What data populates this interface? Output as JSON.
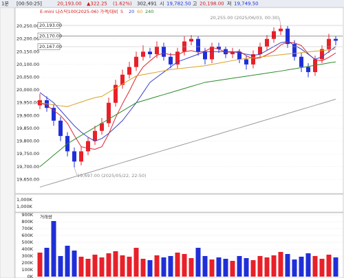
{
  "header": {
    "tab": "1분",
    "time": "[00:50:25]",
    "price": "20,193.00",
    "change": "▲322.25",
    "rate": "(1.62%)",
    "volume": "302,491",
    "open_label": "시",
    "open": "19,782.50",
    "high_label": "고",
    "high": "20,198.00",
    "low_label": "저",
    "low": "19,749.50"
  },
  "sub_labels": [
    "1,000K",
    "1,000K"
  ],
  "chart_data": [
    {
      "type": "candlestick",
      "legend": "E-mini 나스닥100(2025-06) 가격/대비",
      "up_color": "#e8202a",
      "down_color": "#1f2fd8",
      "open": [
        19940,
        19960,
        19930,
        19880,
        19820,
        19760,
        19720,
        19760,
        19800,
        19840,
        19870,
        19950,
        20020,
        20060,
        20090,
        20130,
        20150,
        20140,
        20170,
        20130,
        20100,
        20150,
        20190,
        20200,
        20150,
        20120,
        20170,
        20160,
        20140,
        20150,
        20120,
        20100,
        20140,
        20170,
        20200,
        20230,
        20240,
        20180,
        20130,
        20090,
        20070,
        20120,
        20160,
        20200
      ],
      "high": [
        19985,
        19975,
        19945,
        19895,
        19835,
        19775,
        19780,
        19815,
        19860,
        19890,
        19970,
        20040,
        20080,
        20110,
        20150,
        20175,
        20165,
        20190,
        20185,
        20145,
        20165,
        20210,
        20215,
        20210,
        20165,
        20185,
        20185,
        20170,
        20165,
        20160,
        20135,
        20155,
        20185,
        20215,
        20245,
        20255,
        20250,
        20195,
        20145,
        20105,
        20135,
        20175,
        20220,
        20210
      ],
      "low": [
        19925,
        19915,
        19860,
        19800,
        19740,
        19697,
        19705,
        19745,
        19785,
        19825,
        19855,
        19935,
        20005,
        20045,
        20075,
        20115,
        20125,
        20125,
        20115,
        20085,
        20085,
        20135,
        20175,
        20135,
        20100,
        20105,
        20145,
        20125,
        20125,
        20105,
        20080,
        20085,
        20125,
        20155,
        20185,
        20215,
        20165,
        20115,
        20070,
        20050,
        20055,
        20105,
        20145,
        20175
      ],
      "close": [
        19960,
        19930,
        19880,
        19820,
        19760,
        19720,
        19760,
        19800,
        19840,
        19870,
        19950,
        20020,
        20060,
        20090,
        20130,
        20150,
        20140,
        20170,
        20130,
        20100,
        20150,
        20190,
        20200,
        20150,
        20120,
        20170,
        20160,
        20140,
        20150,
        20120,
        20100,
        20140,
        20170,
        20200,
        20230,
        20240,
        20180,
        20130,
        20090,
        20070,
        20120,
        20160,
        20200,
        20193
      ],
      "ylim": [
        19600,
        20320
      ],
      "yticks": [
        {
          "value": 19650,
          "label": "19,650.00"
        },
        {
          "value": 19700,
          "label": "19,700.00"
        },
        {
          "value": 19750,
          "label": "19,750.00"
        },
        {
          "value": 19800,
          "label": "19,800.00"
        },
        {
          "value": 19850,
          "label": "19,850.00"
        },
        {
          "value": 19900,
          "label": "19,900.00"
        },
        {
          "value": 19950,
          "label": "19,950.00"
        },
        {
          "value": 20000,
          "label": "20,000.00"
        },
        {
          "value": 20050,
          "label": "20,050.00"
        },
        {
          "value": 20100,
          "label": "20,100.00"
        },
        {
          "value": 20150,
          "label": "20,150.00"
        },
        {
          "value": 20200,
          "label": "20,200.00"
        },
        {
          "value": 20250,
          "label": "20,250.00"
        }
      ],
      "price_labels": [
        "20,193.00",
        "20,170.00",
        "20,167.00"
      ],
      "annotations": [
        "20,255.00 (2025/06/03, 00:30)",
        "19,697.00 (2025/05/22, 22:50)"
      ],
      "series": [
        {
          "name": "5",
          "color": "#d8262e",
          "values": [
            19950,
            19940,
            19920,
            19900,
            19870,
            19822,
            19778,
            19772,
            19768,
            19778,
            19828,
            19892,
            19946,
            19996,
            20050,
            20090,
            20114,
            20136,
            20144,
            20138,
            20138,
            20150,
            20154,
            20148,
            20152,
            20166,
            20160,
            20148,
            20148,
            20152,
            20134,
            20122,
            20126,
            20138,
            20152,
            20176,
            20188,
            20184,
            20174,
            20142,
            20118,
            20114,
            20128,
            20145
          ]
        },
        {
          "name": "20",
          "color": "#3a3fc8",
          "values": [
            19990,
            19970,
            19950,
            19920,
            19890,
            19860,
            19835,
            19815,
            19800,
            19810,
            19830,
            19855,
            19880,
            19915,
            19950,
            19990,
            20030,
            20050,
            20070,
            20090,
            20110,
            20120,
            20130,
            20140,
            20150,
            20150,
            20150,
            20150,
            20150,
            20145,
            20140,
            20135,
            20140,
            20155,
            20170,
            20185,
            20190,
            20175,
            20160,
            20140,
            20120,
            20130,
            20150,
            20170
          ]
        },
        {
          "name": "60",
          "color": "#d9a020",
          "values": [
            19950,
            19946,
            19942,
            19938,
            19935,
            19944,
            19953,
            19962,
            19970,
            19975,
            19991,
            20007,
            20023,
            20039,
            20055,
            20060,
            20065,
            20070,
            20075,
            20080,
            20083,
            20086,
            20089,
            20092,
            20095,
            20100,
            20105,
            20110,
            20115,
            20120,
            20123,
            20126,
            20129,
            20132,
            20135,
            20138,
            20141,
            20143,
            20146,
            20149,
            20152,
            20154,
            20157,
            20160
          ]
        },
        {
          "name": "240",
          "color": "#2a8a2a",
          "values": [
            19700,
            19722,
            19745,
            19767,
            19790,
            19806,
            19822,
            19838,
            19854,
            19870,
            19886,
            19902,
            19918,
            19934,
            19950,
            19958,
            19966,
            19974,
            19982,
            19990,
            19998,
            20006,
            20014,
            20022,
            20030,
            20034,
            20038,
            20042,
            20046,
            20050,
            20054,
            20058,
            20062,
            20066,
            20070,
            20074,
            20079,
            20083,
            20088,
            20092,
            20097,
            20101,
            20106,
            20110
          ]
        },
        {
          "color": "#9a9a9a",
          "values": [
            19620,
            19628,
            19636,
            19644,
            19652,
            19660,
            19668,
            19676,
            19684,
            19692,
            19700,
            19708,
            19716,
            19724,
            19732,
            19740,
            19748,
            19756,
            19764,
            19772,
            19780,
            19788,
            19796,
            19804,
            19812,
            19820,
            19828,
            19836,
            19844,
            19852,
            19860,
            19868,
            19876,
            19884,
            19892,
            19900,
            19908,
            19916,
            19924,
            19932,
            19940,
            19948,
            19956,
            19964
          ]
        }
      ]
    },
    {
      "type": "bar",
      "title": "거래량",
      "values": [
        350000,
        420000,
        810000,
        300000,
        450000,
        380000,
        290000,
        260000,
        320000,
        280000,
        340000,
        370000,
        310000,
        290000,
        420000,
        260000,
        240000,
        310000,
        280000,
        300000,
        350000,
        330000,
        270000,
        420000,
        300000,
        250000,
        280000,
        260000,
        230000,
        300000,
        270000,
        240000,
        300000,
        280000,
        310000,
        360000,
        330000,
        250000,
        290000,
        340000,
        300000,
        260000,
        320000,
        280000
      ],
      "ylim": [
        0,
        920000
      ],
      "yticks": [
        {
          "value": 0,
          "label": "0K"
        },
        {
          "value": 100000,
          "label": "100K"
        },
        {
          "value": 200000,
          "label": "200K"
        },
        {
          "value": 300000,
          "label": "300K"
        },
        {
          "value": 400000,
          "label": "400K"
        },
        {
          "value": 500000,
          "label": "500K"
        },
        {
          "value": 600000,
          "label": "600K"
        },
        {
          "value": 700000,
          "label": "700K"
        },
        {
          "value": 800000,
          "label": "800K"
        },
        {
          "value": 900000,
          "label": "900K"
        }
      ]
    }
  ]
}
